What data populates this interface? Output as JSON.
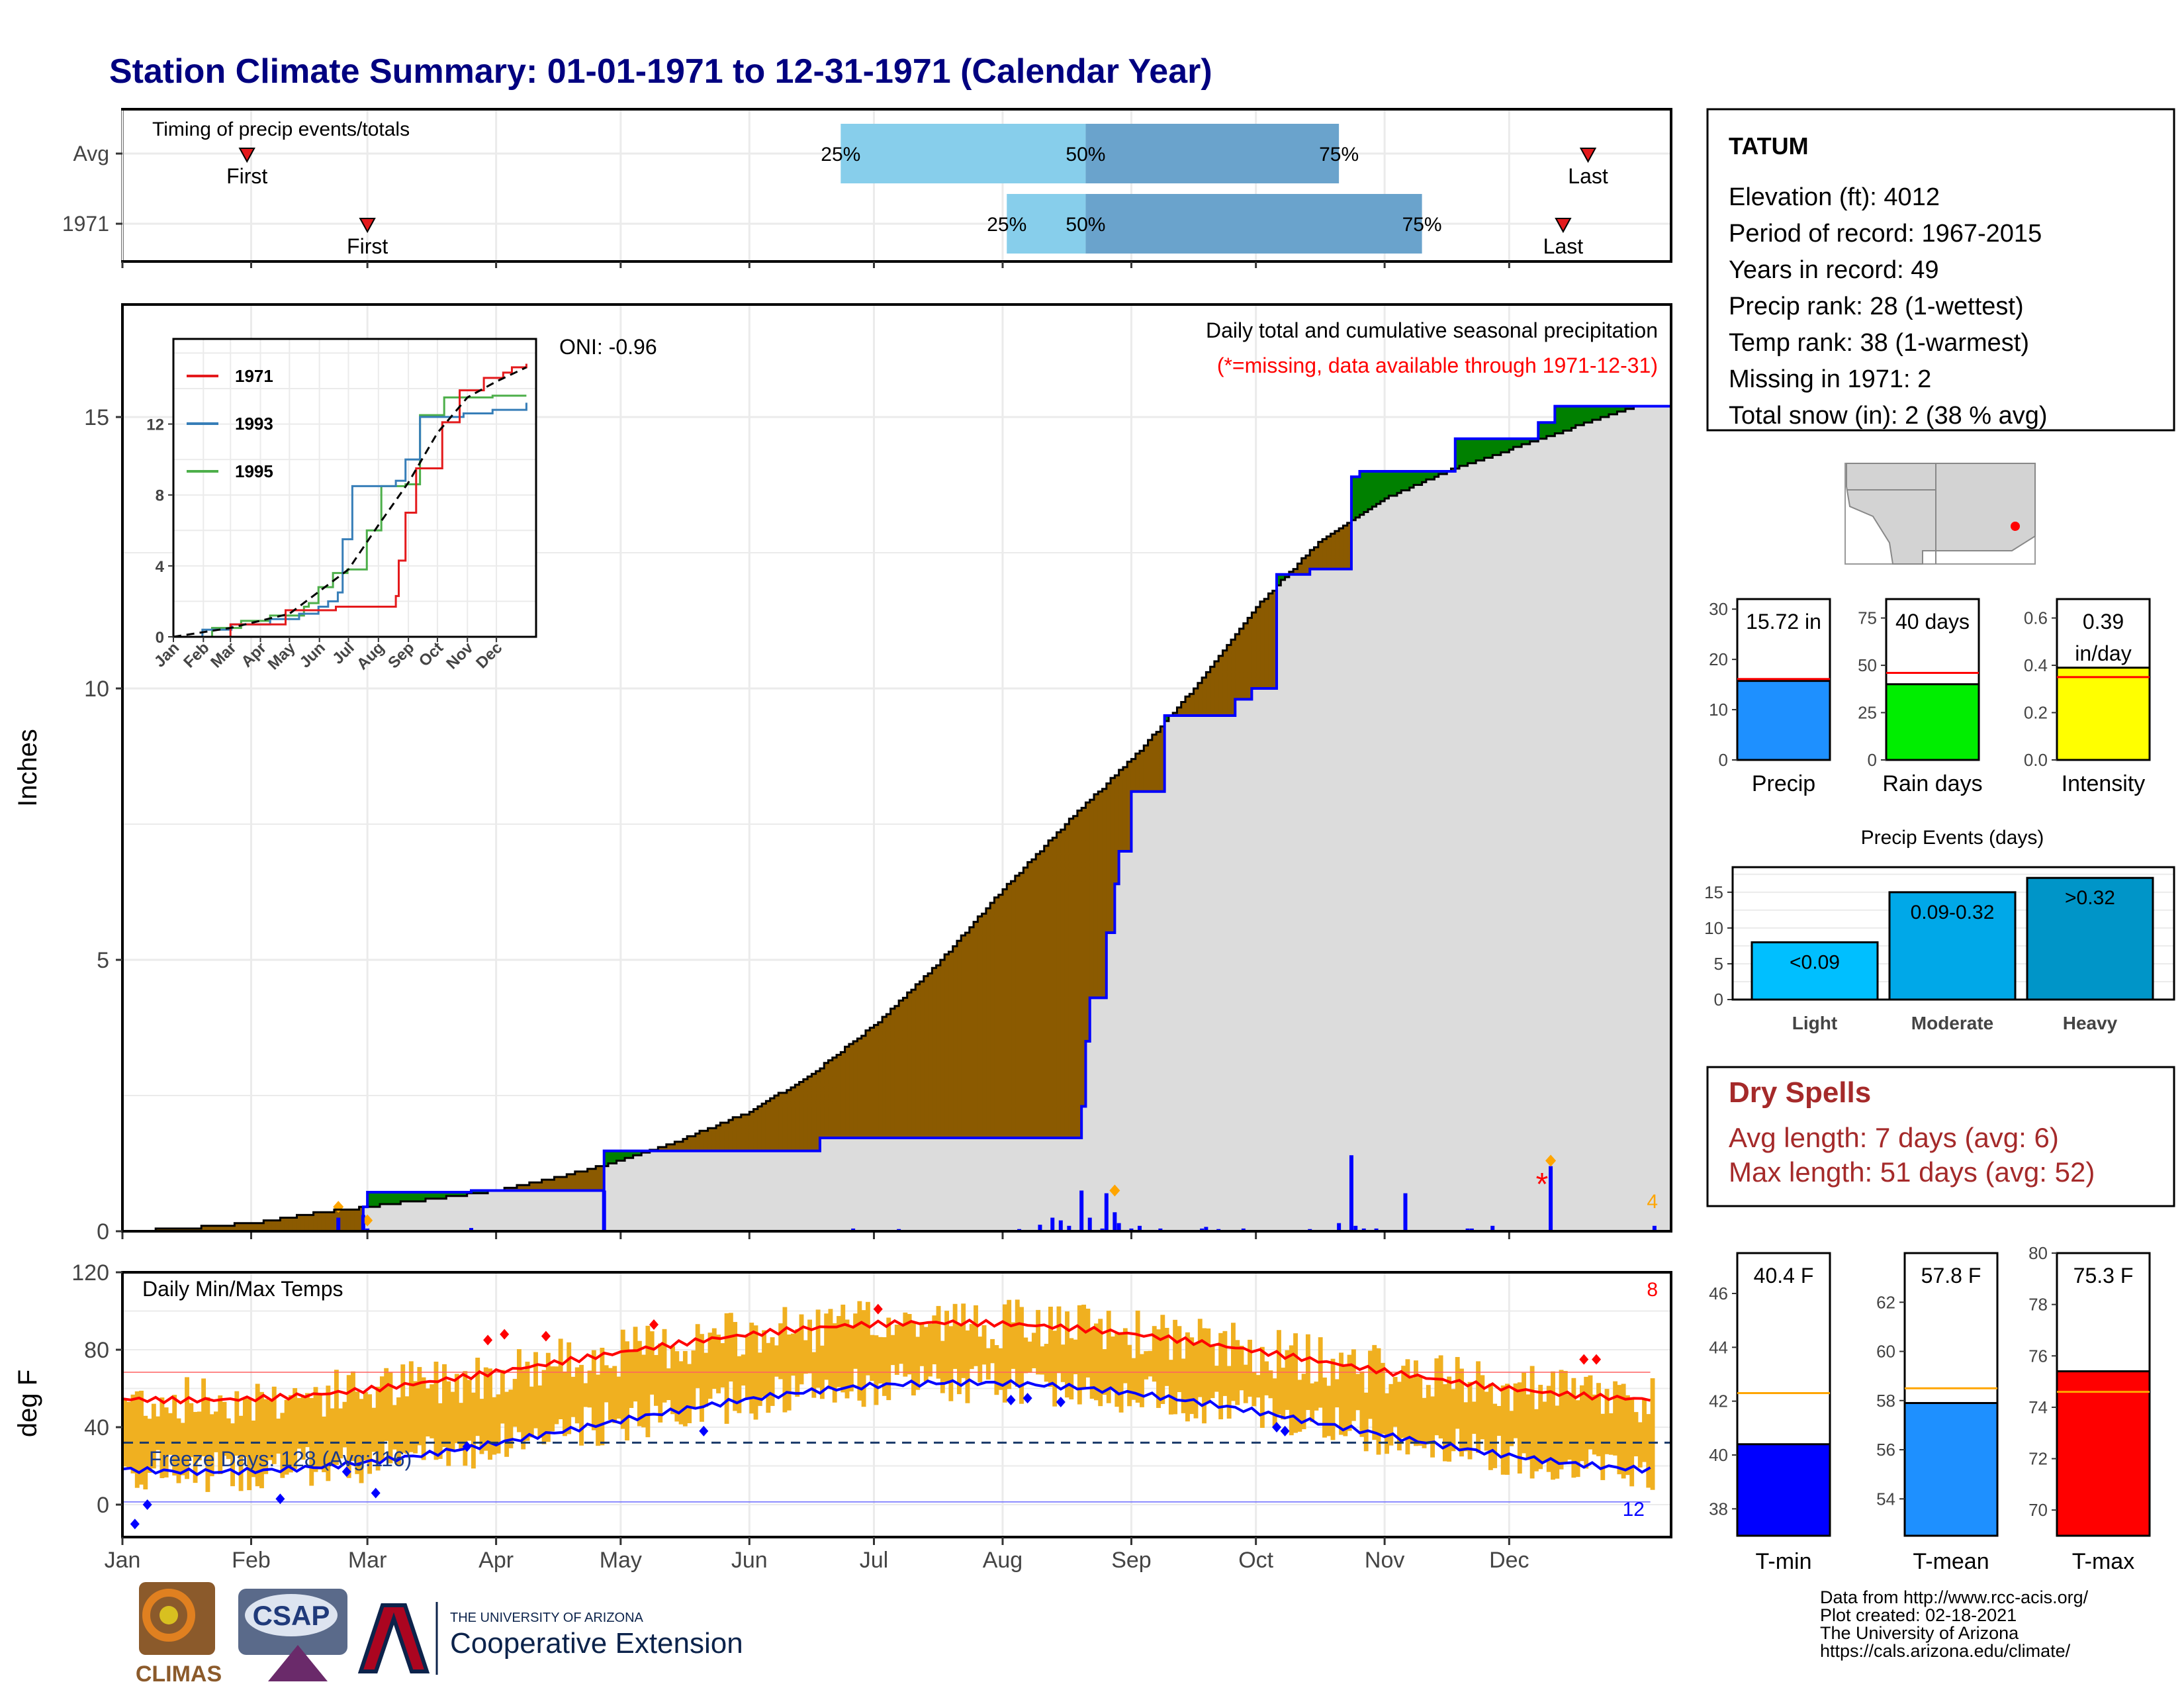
{
  "title": "Station Climate Summary: 01-01-1971 to 12-31-1971 (Calendar Year)",
  "months": [
    "Jan",
    "Feb",
    "Mar",
    "Apr",
    "May",
    "Jun",
    "Jul",
    "Aug",
    "Sep",
    "Oct",
    "Nov",
    "Dec"
  ],
  "timing": {
    "label": "Timing of precip events/totals",
    "rows": [
      {
        "name": "Avg",
        "first": "First",
        "first_day": 30,
        "p25": "25%",
        "p25_day": 173,
        "p50": "50%",
        "p50_day": 232,
        "p75": "75%",
        "p75_day": 293,
        "last": "Last",
        "last_day": 353
      },
      {
        "name": "1971",
        "first": "First",
        "first_day": 59,
        "p25": "25%",
        "p25_day": 213,
        "p50": "50%",
        "p50_day": 232,
        "p75": "75%",
        "p75_day": 313,
        "last": "Last",
        "last_day": 347
      }
    ]
  },
  "precip_panel": {
    "ylabel": "Inches",
    "yticks": [
      0,
      5,
      10,
      15
    ],
    "title": "Daily total and cumulative seasonal precipitation",
    "note": "(*=missing, data available through 1971-12-31)",
    "oni": "ONI: -0.96",
    "corner_count": "4",
    "avg_cum": [
      [
        0,
        0
      ],
      [
        15,
        0.05
      ],
      [
        31,
        0.15
      ],
      [
        45,
        0.32
      ],
      [
        59,
        0.45
      ],
      [
        75,
        0.6
      ],
      [
        90,
        0.75
      ],
      [
        105,
        1.0
      ],
      [
        120,
        1.3
      ],
      [
        135,
        1.7
      ],
      [
        151,
        2.2
      ],
      [
        166,
        2.9
      ],
      [
        181,
        3.8
      ],
      [
        196,
        4.9
      ],
      [
        212,
        6.3
      ],
      [
        227,
        7.5
      ],
      [
        243,
        8.7
      ],
      [
        258,
        10.0
      ],
      [
        273,
        11.5
      ],
      [
        288,
        12.7
      ],
      [
        304,
        13.5
      ],
      [
        319,
        14.0
      ],
      [
        334,
        14.4
      ],
      [
        349,
        14.8
      ],
      [
        365,
        15.2
      ]
    ],
    "cum_1971": [
      [
        0,
        0
      ],
      [
        58,
        0.45
      ],
      [
        59,
        0.72
      ],
      [
        74,
        0.72
      ],
      [
        84,
        0.75
      ],
      [
        115,
        0.75
      ],
      [
        116,
        1.48
      ],
      [
        167,
        1.48
      ],
      [
        168,
        1.72
      ],
      [
        229,
        1.72
      ],
      [
        231,
        2.3
      ],
      [
        232,
        3.5
      ],
      [
        233,
        4.3
      ],
      [
        236,
        4.3
      ],
      [
        237,
        5.5
      ],
      [
        239,
        6.4
      ],
      [
        240,
        7.0
      ],
      [
        243,
        8.1
      ],
      [
        250,
        8.1
      ],
      [
        251,
        9.5
      ],
      [
        266,
        9.5
      ],
      [
        268,
        9.8
      ],
      [
        272,
        10.0
      ],
      [
        278,
        12.1
      ],
      [
        286,
        12.2
      ],
      [
        295,
        12.2
      ],
      [
        296,
        13.9
      ],
      [
        298,
        14.0
      ],
      [
        304,
        14.0
      ],
      [
        320,
        14.0
      ],
      [
        321,
        14.6
      ],
      [
        338,
        14.6
      ],
      [
        341,
        14.9
      ],
      [
        345,
        15.2
      ],
      [
        365,
        15.2
      ]
    ],
    "daily_bars": [
      [
        52,
        0.25
      ],
      [
        58,
        0.3
      ],
      [
        59,
        0.05
      ],
      [
        84,
        0.06
      ],
      [
        116,
        0.75
      ],
      [
        176,
        0.05
      ],
      [
        187,
        0.04
      ],
      [
        216,
        0.04
      ],
      [
        221,
        0.12
      ],
      [
        224,
        0.25
      ],
      [
        226,
        0.2
      ],
      [
        228,
        0.1
      ],
      [
        231,
        0.75
      ],
      [
        233,
        0.25
      ],
      [
        236,
        0.05
      ],
      [
        237,
        0.7
      ],
      [
        239,
        0.35
      ],
      [
        240,
        0.15
      ],
      [
        243,
        0.05
      ],
      [
        245,
        0.1
      ],
      [
        250,
        0.05
      ],
      [
        260,
        0.05
      ],
      [
        261,
        0.08
      ],
      [
        264,
        0.04
      ],
      [
        270,
        0.05
      ],
      [
        286,
        0.04
      ],
      [
        293,
        0.15
      ],
      [
        296,
        1.4
      ],
      [
        297,
        0.1
      ],
      [
        299,
        0.05
      ],
      [
        302,
        0.05
      ],
      [
        309,
        0.7
      ],
      [
        324,
        0.05
      ],
      [
        325,
        0.05
      ],
      [
        330,
        0.1
      ],
      [
        344,
        1.2
      ],
      [
        369,
        0.1
      ]
    ],
    "missing_day": 335
  },
  "inset": {
    "months": [
      "Jan",
      "Feb",
      "Mar",
      "Apr",
      "May",
      "Jun",
      "Jul",
      "Aug",
      "Sep",
      "Oct",
      "Nov",
      "Dec"
    ],
    "yticks": [
      0,
      4,
      8,
      12
    ],
    "legend": [
      {
        "name": "1971",
        "color": "#e41a1c"
      },
      {
        "name": "1993",
        "color": "#377eb8"
      },
      {
        "name": "1995",
        "color": "#4daf4a"
      }
    ],
    "avg": [
      [
        0,
        0
      ],
      [
        59,
        0.5
      ],
      [
        120,
        1.3
      ],
      [
        181,
        3.8
      ],
      [
        212,
        6.3
      ],
      [
        243,
        8.7
      ],
      [
        273,
        11.5
      ],
      [
        304,
        13.5
      ],
      [
        334,
        14.4
      ],
      [
        365,
        15.2
      ]
    ],
    "y1971": [
      [
        0,
        0
      ],
      [
        59,
        0.7
      ],
      [
        116,
        1.5
      ],
      [
        168,
        1.7
      ],
      [
        230,
        2.3
      ],
      [
        233,
        4.3
      ],
      [
        240,
        7.0
      ],
      [
        251,
        9.5
      ],
      [
        278,
        12.1
      ],
      [
        296,
        13.9
      ],
      [
        321,
        14.6
      ],
      [
        341,
        14.9
      ],
      [
        350,
        15.2
      ],
      [
        365,
        15.4
      ]
    ],
    "y1993": [
      [
        0,
        0
      ],
      [
        30,
        0.4
      ],
      [
        60,
        0.7
      ],
      [
        100,
        1.0
      ],
      [
        130,
        1.3
      ],
      [
        150,
        1.7
      ],
      [
        160,
        2.0
      ],
      [
        170,
        2.5
      ],
      [
        175,
        5.5
      ],
      [
        185,
        8.5
      ],
      [
        190,
        8.5
      ],
      [
        230,
        8.8
      ],
      [
        240,
        10
      ],
      [
        255,
        12.4
      ],
      [
        300,
        12.6
      ],
      [
        330,
        12.8
      ],
      [
        365,
        13.2
      ]
    ],
    "y1995": [
      [
        0,
        0
      ],
      [
        40,
        0.5
      ],
      [
        70,
        0.9
      ],
      [
        100,
        1.2
      ],
      [
        135,
        1.7
      ],
      [
        140,
        1.9
      ],
      [
        150,
        2.8
      ],
      [
        165,
        3.6
      ],
      [
        180,
        3.8
      ],
      [
        200,
        6
      ],
      [
        215,
        8.5
      ],
      [
        240,
        8.6
      ],
      [
        255,
        12.5
      ],
      [
        280,
        13.5
      ],
      [
        330,
        13.6
      ],
      [
        365,
        13.6
      ]
    ]
  },
  "temp_panel": {
    "ylabel": "deg F",
    "yticks": [
      0,
      40,
      80,
      120
    ],
    "title": "Daily Min/Max Temps",
    "freeze": "Freeze Days: 128 (Avg:116)",
    "freeze_line": 32,
    "count_high": "8",
    "count_low": "12"
  },
  "station": {
    "name": "TATUM",
    "lines": [
      "Elevation (ft): 4012",
      "Period of record: 1967-2015",
      "Years in record: 49",
      "Precip rank: 28 (1-wettest)",
      "Temp rank: 38 (1-warmest)",
      "Missing in 1971: 2",
      "Total snow (in): 2 (38 % avg)"
    ]
  },
  "mini_charts": [
    {
      "label": "Precip",
      "value_label": "15.72 in",
      "value": 15.72,
      "avg": 16.1,
      "ymax": 32,
      "yticks": [
        0,
        10,
        20,
        30
      ],
      "color": "#1e90ff"
    },
    {
      "label": "Rain days",
      "value_label": "40 days",
      "value": 40,
      "avg": 46,
      "ymax": 85,
      "yticks": [
        0,
        25,
        50,
        75
      ],
      "color": "#00ee00"
    },
    {
      "label": "Intensity",
      "value_label": "0.39",
      "value_label2": "in/day",
      "value": 0.39,
      "avg": 0.35,
      "ymax": 0.68,
      "yticks": [
        "0.0",
        "0.2",
        "0.4",
        "0.6"
      ],
      "color": "#ffff00"
    }
  ],
  "events": {
    "title": "Precip Events (days)",
    "yticks": [
      0,
      5,
      10,
      15
    ],
    "bars": [
      {
        "category": "Light",
        "label": "<0.09",
        "value": 8,
        "color": "#00bfff"
      },
      {
        "category": "Moderate",
        "label": "0.09-0.32",
        "value": 15,
        "color": "#00a8e8"
      },
      {
        "category": "Heavy",
        "label": ">0.32",
        "value": 17,
        "color": "#0095c8"
      }
    ]
  },
  "dry": {
    "title": "Dry Spells",
    "avg": "Avg length: 7 days (avg: 6)",
    "max": "Max length: 51 days (avg: 52)"
  },
  "temp_bars": [
    {
      "label": "T-min",
      "value_label": "40.4 F",
      "value": 40.4,
      "avg": 42.3,
      "ymin": 37,
      "ymax": 47.5,
      "yticks": [
        38,
        40,
        42,
        44,
        46
      ],
      "color": "#0000ff"
    },
    {
      "label": "T-mean",
      "value_label": "57.8 F",
      "value": 57.9,
      "avg": 58.5,
      "ymin": 52.5,
      "ymax": 64,
      "yticks": [
        54,
        56,
        58,
        60,
        62
      ],
      "color": "#1e90ff"
    },
    {
      "label": "T-max",
      "value_label": "75.3 F",
      "value": 75.4,
      "avg": 74.6,
      "ymin": 69,
      "ymax": 80,
      "yticks": [
        70,
        72,
        74,
        76,
        78,
        80
      ],
      "color": "#ff0000"
    }
  ],
  "footer": {
    "lines": [
      "Data from http://www.rcc-acis.org/",
      "Plot created: 02-18-2021",
      "The University of Arizona",
      "https://cals.arizona.edu/climate/"
    ],
    "climas": "CLIMAS",
    "csap": "CSAP",
    "ua_small": "THE UNIVERSITY OF ARIZONA",
    "ua_big": "Cooperative Extension"
  },
  "colors": {
    "navy": "#000080",
    "brown": "#8b5a00",
    "green": "#008000",
    "blue": "#0000ff",
    "grey": "#dcdcdc",
    "orange": "#f0b020",
    "dryred": "#a52a2a"
  }
}
